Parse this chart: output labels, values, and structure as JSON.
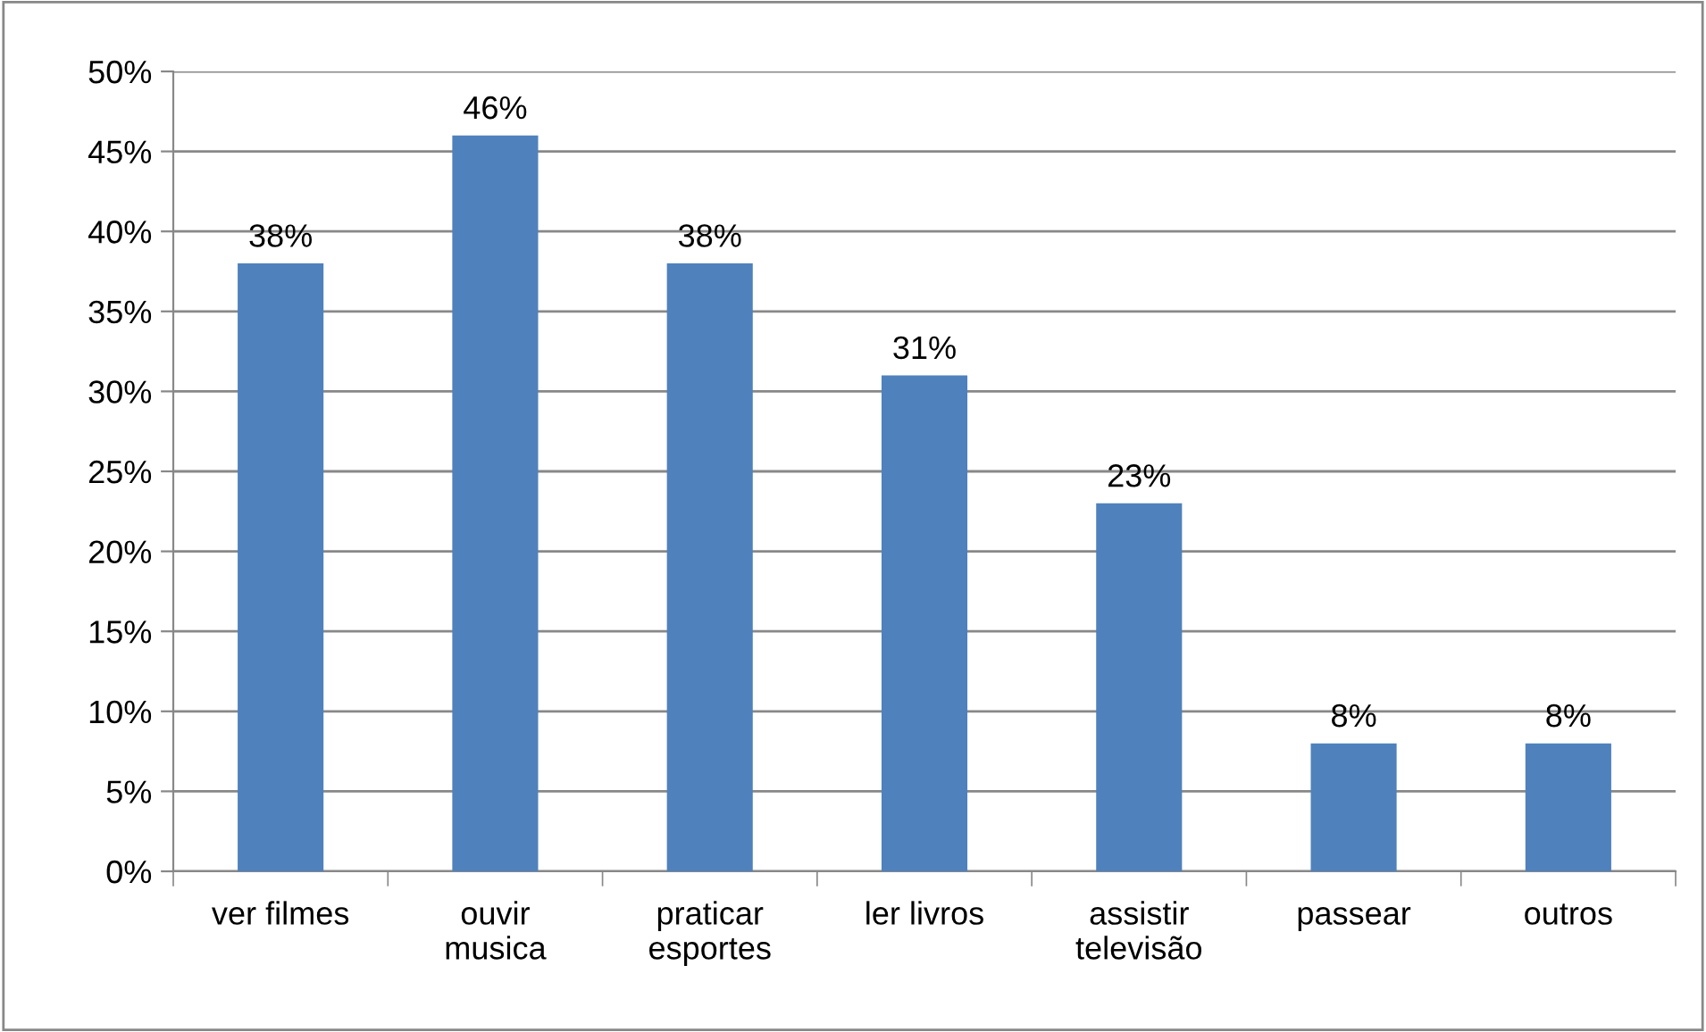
{
  "chart_data": {
    "type": "bar",
    "categories": [
      "ver filmes",
      "ouvir\nmusica",
      "praticar\nesportes",
      "ler livros",
      "assistir\ntelevisão",
      "passear",
      "outros"
    ],
    "values": [
      38,
      46,
      38,
      31,
      23,
      8,
      8
    ],
    "value_labels": [
      "38%",
      "46%",
      "38%",
      "31%",
      "23%",
      "8%",
      "8%"
    ],
    "color": "#4f81bd",
    "ylim": [
      0,
      50
    ],
    "yticks": [
      {
        "value": 0,
        "label": "0%"
      },
      {
        "value": 5,
        "label": "5%"
      },
      {
        "value": 10,
        "label": "10%"
      },
      {
        "value": 15,
        "label": "15%"
      },
      {
        "value": 20,
        "label": "20%"
      },
      {
        "value": 25,
        "label": "25%"
      },
      {
        "value": 30,
        "label": "30%"
      },
      {
        "value": 35,
        "label": "35%"
      },
      {
        "value": 40,
        "label": "40%"
      },
      {
        "value": 45,
        "label": "45%"
      },
      {
        "value": 50,
        "label": "50%"
      }
    ],
    "grid": "y"
  }
}
